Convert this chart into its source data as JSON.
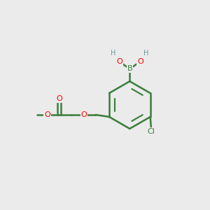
{
  "background_color": "#ebebeb",
  "bond_color": "#3a7d3a",
  "bond_width": 1.8,
  "atom_colors": {
    "C": "#3a7d3a",
    "H": "#6a9a9a",
    "O": "#ff0000",
    "B": "#3a7d3a",
    "Cl": "#3a7d3a"
  },
  "figsize": [
    3.0,
    3.0
  ],
  "dpi": 100
}
